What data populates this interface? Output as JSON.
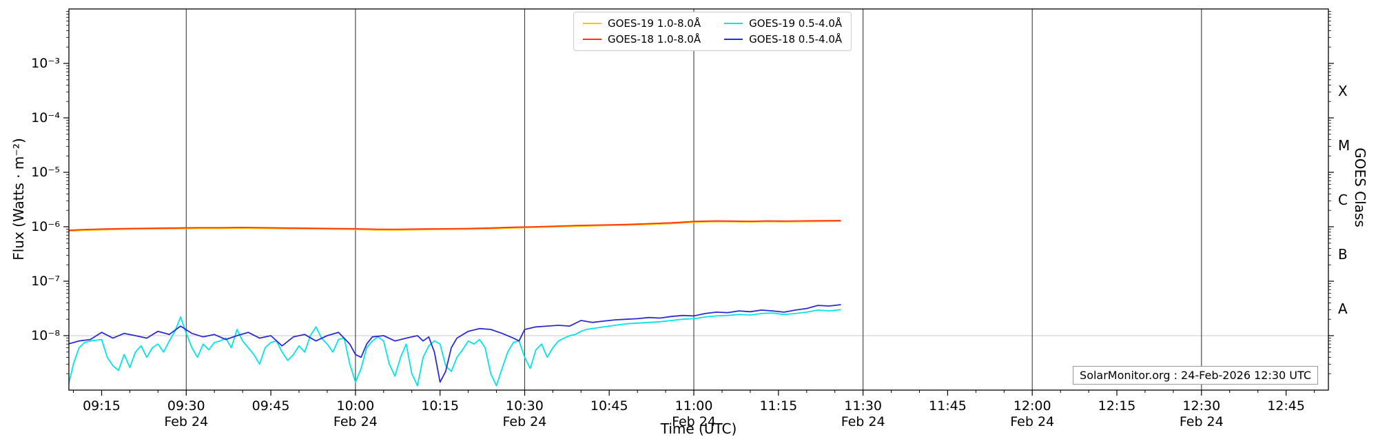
{
  "colors": {
    "goes19_long": "#ffc400",
    "goes18_long": "#ff3300",
    "goes19_short": "#00e5e5",
    "goes18_short": "#2a2ad4",
    "vline": "#3a3a3a",
    "hline": "#c8c8c8",
    "frame": "#000000"
  },
  "labels": {
    "ylabel_left": "Flux (Watts · m⁻²)",
    "ylabel_right": "GOES Class",
    "xlabel": "Time (UTC)",
    "watermark": "SolarMonitor.org : 24-Feb-2026 12:30 UTC"
  },
  "legend": {
    "position": "top-center",
    "entries": [
      {
        "label": "GOES-19 1.0-8.0Å"
      },
      {
        "label": "GOES-18 1.0-8.0Å"
      },
      {
        "label": "GOES-19 0.5-4.0Å"
      },
      {
        "label": "GOES-18 0.5-4.0Å"
      }
    ]
  },
  "chart_data": {
    "type": "line",
    "title": "",
    "xlabel": "Time (UTC)",
    "ylabel": "Flux (Watts · m⁻²)",
    "ylabel_right": "GOES Class",
    "y_scale": "log",
    "ylim": [
      1e-09,
      0.01
    ],
    "x_minutes_range": [
      9.2,
      232.5
    ],
    "x_range_labels": [
      "09:09",
      "12:52"
    ],
    "date_line": "Feb 24",
    "x_ticks": [
      {
        "t": 15,
        "label": "09:15"
      },
      {
        "t": 30,
        "label": "09:30",
        "date": "Feb 24"
      },
      {
        "t": 45,
        "label": "09:45"
      },
      {
        "t": 60,
        "label": "10:00",
        "date": "Feb 24"
      },
      {
        "t": 75,
        "label": "10:15"
      },
      {
        "t": 90,
        "label": "10:30",
        "date": "Feb 24"
      },
      {
        "t": 105,
        "label": "10:45"
      },
      {
        "t": 120,
        "label": "11:00",
        "date": "Feb 24"
      },
      {
        "t": 135,
        "label": "11:15"
      },
      {
        "t": 150,
        "label": "11:30",
        "date": "Feb 24"
      },
      {
        "t": 165,
        "label": "11:45"
      },
      {
        "t": 180,
        "label": "12:00",
        "date": "Feb 24"
      },
      {
        "t": 195,
        "label": "12:15"
      },
      {
        "t": 210,
        "label": "12:30",
        "date": "Feb 24"
      },
      {
        "t": 225,
        "label": "12:45"
      }
    ],
    "y_ticks": [
      {
        "v": 0.001,
        "label": "10⁻³"
      },
      {
        "v": 0.0001,
        "label": "10⁻⁴"
      },
      {
        "v": 1e-05,
        "label": "10⁻⁵"
      },
      {
        "v": 1e-06,
        "label": "10⁻⁶"
      },
      {
        "v": 1e-07,
        "label": "10⁻⁷"
      },
      {
        "v": 1e-08,
        "label": "10⁻⁸"
      }
    ],
    "vline_minutes": [
      30,
      60,
      90,
      120,
      150,
      180,
      210
    ],
    "hline_values": [
      1e-08
    ],
    "goes_class_letters": [
      {
        "label": "X",
        "v": 0.000316
      },
      {
        "label": "M",
        "v": 3.16e-05
      },
      {
        "label": "C",
        "v": 3.16e-06
      },
      {
        "label": "B",
        "v": 3.16e-07
      },
      {
        "label": "A",
        "v": 3.16e-08
      }
    ],
    "series": [
      {
        "name": "GOES-19 1.0-8.0Å",
        "color": "#ffc400",
        "points": [
          [
            9,
            8.3e-07
          ],
          [
            12,
            8.6e-07
          ],
          [
            16,
            8.8e-07
          ],
          [
            20,
            9e-07
          ],
          [
            24,
            9.1e-07
          ],
          [
            28,
            9.2e-07
          ],
          [
            32,
            9.3e-07
          ],
          [
            36,
            9.3e-07
          ],
          [
            40,
            9.4e-07
          ],
          [
            44,
            9.3e-07
          ],
          [
            48,
            9.2e-07
          ],
          [
            52,
            9.1e-07
          ],
          [
            56,
            9e-07
          ],
          [
            60,
            8.9e-07
          ],
          [
            64,
            8.7e-07
          ],
          [
            68,
            8.7e-07
          ],
          [
            72,
            8.8e-07
          ],
          [
            76,
            8.9e-07
          ],
          [
            80,
            9e-07
          ],
          [
            84,
            9.2e-07
          ],
          [
            88,
            9.5e-07
          ],
          [
            92,
            9.7e-07
          ],
          [
            96,
            1e-06
          ],
          [
            100,
            1.02e-06
          ],
          [
            104,
            1.05e-06
          ],
          [
            108,
            1.07e-06
          ],
          [
            112,
            1.1e-06
          ],
          [
            116,
            1.14e-06
          ],
          [
            120,
            1.21e-06
          ],
          [
            124,
            1.24e-06
          ],
          [
            127,
            1.23e-06
          ],
          [
            130,
            1.22e-06
          ],
          [
            133,
            1.24e-06
          ],
          [
            136,
            1.23e-06
          ],
          [
            139,
            1.24e-06
          ],
          [
            142,
            1.25e-06
          ],
          [
            146,
            1.26e-06
          ]
        ]
      },
      {
        "name": "GOES-18 1.0-8.0Å",
        "color": "#ff3300",
        "points": [
          [
            9,
            8.6e-07
          ],
          [
            12,
            8.9e-07
          ],
          [
            16,
            9.1e-07
          ],
          [
            20,
            9.3e-07
          ],
          [
            24,
            9.4e-07
          ],
          [
            28,
            9.5e-07
          ],
          [
            32,
            9.6e-07
          ],
          [
            36,
            9.6e-07
          ],
          [
            40,
            9.7e-07
          ],
          [
            44,
            9.6e-07
          ],
          [
            48,
            9.5e-07
          ],
          [
            52,
            9.4e-07
          ],
          [
            56,
            9.3e-07
          ],
          [
            60,
            9.2e-07
          ],
          [
            64,
            9e-07
          ],
          [
            68,
            9e-07
          ],
          [
            72,
            9.1e-07
          ],
          [
            76,
            9.2e-07
          ],
          [
            80,
            9.3e-07
          ],
          [
            84,
            9.5e-07
          ],
          [
            88,
            9.8e-07
          ],
          [
            92,
            1e-06
          ],
          [
            96,
            1.03e-06
          ],
          [
            100,
            1.06e-06
          ],
          [
            104,
            1.08e-06
          ],
          [
            108,
            1.1e-06
          ],
          [
            112,
            1.14e-06
          ],
          [
            116,
            1.18e-06
          ],
          [
            120,
            1.25e-06
          ],
          [
            124,
            1.28e-06
          ],
          [
            127,
            1.27e-06
          ],
          [
            130,
            1.26e-06
          ],
          [
            133,
            1.28e-06
          ],
          [
            136,
            1.27e-06
          ],
          [
            139,
            1.28e-06
          ],
          [
            142,
            1.29e-06
          ],
          [
            146,
            1.3e-06
          ]
        ]
      },
      {
        "name": "GOES-19 0.5-4.0Å",
        "color": "#00e5e5",
        "points": [
          [
            9,
            1.1e-09
          ],
          [
            10,
            3e-09
          ],
          [
            11,
            6e-09
          ],
          [
            12,
            7.5e-09
          ],
          [
            13,
            8e-09
          ],
          [
            15,
            8.5e-09
          ],
          [
            16,
            4e-09
          ],
          [
            17,
            2.8e-09
          ],
          [
            18,
            2.3e-09
          ],
          [
            19,
            4.5e-09
          ],
          [
            20,
            2.6e-09
          ],
          [
            21,
            5e-09
          ],
          [
            22,
            6.5e-09
          ],
          [
            23,
            4e-09
          ],
          [
            24,
            6e-09
          ],
          [
            25,
            7e-09
          ],
          [
            26,
            5e-09
          ],
          [
            27,
            8e-09
          ],
          [
            28,
            1.2e-08
          ],
          [
            29,
            2.2e-08
          ],
          [
            30,
            1.1e-08
          ],
          [
            31,
            6e-09
          ],
          [
            32,
            4e-09
          ],
          [
            33,
            7e-09
          ],
          [
            34,
            5.5e-09
          ],
          [
            35,
            7.5e-09
          ],
          [
            36,
            8e-09
          ],
          [
            37,
            9e-09
          ],
          [
            38,
            6e-09
          ],
          [
            39,
            1.3e-08
          ],
          [
            40,
            8e-09
          ],
          [
            41,
            6e-09
          ],
          [
            42,
            4.5e-09
          ],
          [
            43,
            3e-09
          ],
          [
            44,
            6e-09
          ],
          [
            45,
            7.5e-09
          ],
          [
            46,
            8e-09
          ],
          [
            47,
            5e-09
          ],
          [
            48,
            3.5e-09
          ],
          [
            49,
            4.5e-09
          ],
          [
            50,
            6.5e-09
          ],
          [
            51,
            5e-09
          ],
          [
            52,
            1e-08
          ],
          [
            53,
            1.45e-08
          ],
          [
            54,
            9e-09
          ],
          [
            55,
            7e-09
          ],
          [
            56,
            5e-09
          ],
          [
            57,
            8.5e-09
          ],
          [
            58,
            9e-09
          ],
          [
            59,
            3e-09
          ],
          [
            60,
            1.4e-09
          ],
          [
            61,
            2.5e-09
          ],
          [
            62,
            6e-09
          ],
          [
            63,
            8e-09
          ],
          [
            64,
            9.5e-09
          ],
          [
            65,
            8e-09
          ],
          [
            66,
            3e-09
          ],
          [
            67,
            1.8e-09
          ],
          [
            68,
            4e-09
          ],
          [
            69,
            7e-09
          ],
          [
            70,
            2e-09
          ],
          [
            71,
            1.2e-09
          ],
          [
            72,
            4e-09
          ],
          [
            73,
            6.5e-09
          ],
          [
            74,
            8e-09
          ],
          [
            75,
            7e-09
          ],
          [
            76,
            2.8e-09
          ],
          [
            77,
            2.2e-09
          ],
          [
            78,
            4e-09
          ],
          [
            79,
            5.5e-09
          ],
          [
            80,
            8e-09
          ],
          [
            81,
            7e-09
          ],
          [
            82,
            8.5e-09
          ],
          [
            83,
            6e-09
          ],
          [
            84,
            2e-09
          ],
          [
            85,
            1.2e-09
          ],
          [
            86,
            2.5e-09
          ],
          [
            87,
            5e-09
          ],
          [
            88,
            7.5e-09
          ],
          [
            89,
            8e-09
          ],
          [
            90,
            4e-09
          ],
          [
            91,
            2.5e-09
          ],
          [
            92,
            5.5e-09
          ],
          [
            93,
            7e-09
          ],
          [
            94,
            4e-09
          ],
          [
            95,
            6e-09
          ],
          [
            96,
            8e-09
          ],
          [
            97,
            9e-09
          ],
          [
            98,
            1e-08
          ],
          [
            99,
            1.05e-08
          ],
          [
            100,
            1.2e-08
          ],
          [
            101,
            1.3e-08
          ],
          [
            102,
            1.35e-08
          ],
          [
            103,
            1.4e-08
          ],
          [
            104,
            1.45e-08
          ],
          [
            106,
            1.55e-08
          ],
          [
            108,
            1.65e-08
          ],
          [
            110,
            1.7e-08
          ],
          [
            112,
            1.75e-08
          ],
          [
            114,
            1.8e-08
          ],
          [
            116,
            1.9e-08
          ],
          [
            118,
            2e-08
          ],
          [
            120,
            2.05e-08
          ],
          [
            122,
            2.2e-08
          ],
          [
            124,
            2.3e-08
          ],
          [
            126,
            2.35e-08
          ],
          [
            128,
            2.45e-08
          ],
          [
            130,
            2.4e-08
          ],
          [
            132,
            2.55e-08
          ],
          [
            134,
            2.6e-08
          ],
          [
            136,
            2.45e-08
          ],
          [
            138,
            2.55e-08
          ],
          [
            140,
            2.7e-08
          ],
          [
            142,
            2.95e-08
          ],
          [
            144,
            2.85e-08
          ],
          [
            146,
            3e-08
          ]
        ]
      },
      {
        "name": "GOES-18 0.5-4.0Å",
        "color": "#2a2ad4",
        "points": [
          [
            9,
            7e-09
          ],
          [
            11,
            8e-09
          ],
          [
            13,
            8.5e-09
          ],
          [
            15,
            1.15e-08
          ],
          [
            17,
            9e-09
          ],
          [
            19,
            1.1e-08
          ],
          [
            21,
            1e-08
          ],
          [
            23,
            9e-09
          ],
          [
            25,
            1.2e-08
          ],
          [
            27,
            1.05e-08
          ],
          [
            29,
            1.5e-08
          ],
          [
            31,
            1.1e-08
          ],
          [
            33,
            9.5e-09
          ],
          [
            35,
            1.05e-08
          ],
          [
            37,
            8.5e-09
          ],
          [
            39,
            1e-08
          ],
          [
            41,
            1.15e-08
          ],
          [
            43,
            9e-09
          ],
          [
            45,
            1e-08
          ],
          [
            47,
            6.5e-09
          ],
          [
            49,
            9.5e-09
          ],
          [
            51,
            1.05e-08
          ],
          [
            53,
            8e-09
          ],
          [
            55,
            1e-08
          ],
          [
            57,
            1.15e-08
          ],
          [
            59,
            7e-09
          ],
          [
            60,
            4.5e-09
          ],
          [
            61,
            4e-09
          ],
          [
            62,
            7e-09
          ],
          [
            63,
            9.5e-09
          ],
          [
            65,
            1e-08
          ],
          [
            67,
            8e-09
          ],
          [
            69,
            9e-09
          ],
          [
            71,
            1e-08
          ],
          [
            72,
            8e-09
          ],
          [
            73,
            9.5e-09
          ],
          [
            74,
            5e-09
          ],
          [
            75,
            1.4e-09
          ],
          [
            76,
            2.2e-09
          ],
          [
            77,
            6e-09
          ],
          [
            78,
            9e-09
          ],
          [
            80,
            1.2e-08
          ],
          [
            82,
            1.35e-08
          ],
          [
            84,
            1.3e-08
          ],
          [
            86,
            1.1e-08
          ],
          [
            88,
            9e-09
          ],
          [
            89,
            8e-09
          ],
          [
            90,
            1.3e-08
          ],
          [
            92,
            1.45e-08
          ],
          [
            94,
            1.5e-08
          ],
          [
            96,
            1.55e-08
          ],
          [
            98,
            1.5e-08
          ],
          [
            100,
            1.9e-08
          ],
          [
            102,
            1.75e-08
          ],
          [
            104,
            1.85e-08
          ],
          [
            106,
            1.95e-08
          ],
          [
            108,
            2e-08
          ],
          [
            110,
            2.05e-08
          ],
          [
            112,
            2.15e-08
          ],
          [
            114,
            2.1e-08
          ],
          [
            116,
            2.25e-08
          ],
          [
            118,
            2.35e-08
          ],
          [
            120,
            2.3e-08
          ],
          [
            122,
            2.55e-08
          ],
          [
            124,
            2.7e-08
          ],
          [
            126,
            2.65e-08
          ],
          [
            128,
            2.85e-08
          ],
          [
            130,
            2.75e-08
          ],
          [
            132,
            2.95e-08
          ],
          [
            134,
            2.85e-08
          ],
          [
            136,
            2.7e-08
          ],
          [
            138,
            2.95e-08
          ],
          [
            140,
            3.15e-08
          ],
          [
            142,
            3.6e-08
          ],
          [
            144,
            3.5e-08
          ],
          [
            146,
            3.7e-08
          ]
        ]
      }
    ]
  }
}
